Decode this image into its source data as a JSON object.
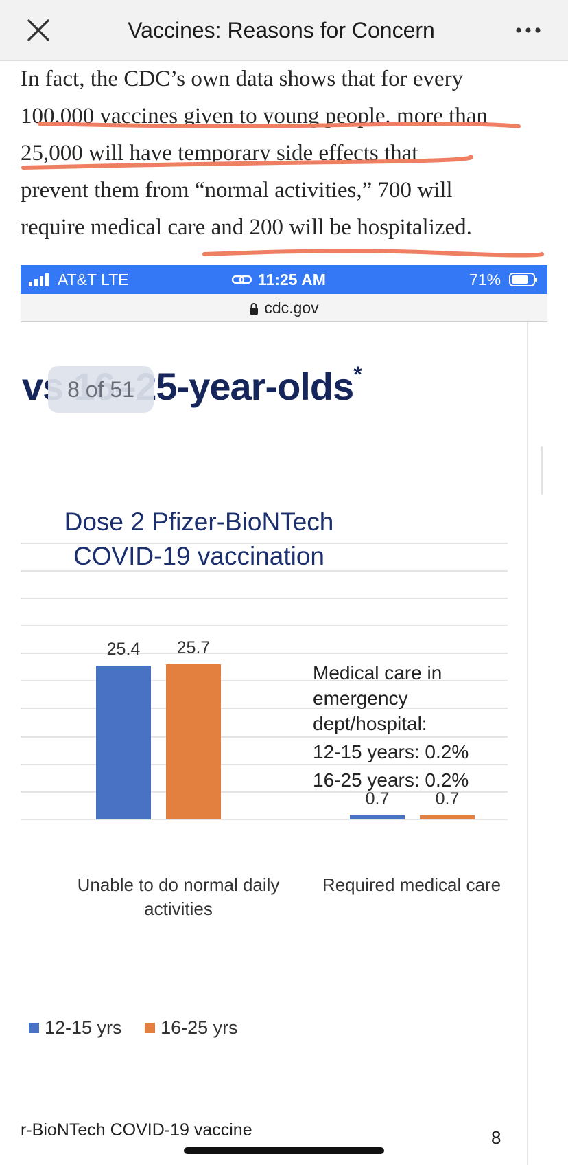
{
  "app": {
    "title": "Vaccines: Reasons for Concern"
  },
  "article": {
    "lines": [
      "In fact, the CDC’s own data shows that for every",
      "100,000 vaccines given to young people, more than",
      "25,000 will have temporary side effects that",
      "prevent them from “normal activities,” 700 will",
      "require medical care and 200 will be hospitalized."
    ],
    "highlight_color": "#ee7f63"
  },
  "screenshot": {
    "status": {
      "carrier": "AT&T  LTE",
      "time": "11:25 AM",
      "battery": "71%"
    },
    "url": "cdc.gov",
    "slide": {
      "heading": "vs 16–25-year-olds",
      "heading_mark": "*",
      "page_counter": "8 of 51",
      "footer_text": "r-BioNTech COVID-19 vaccine",
      "footer_page": "8",
      "note": {
        "lines": [
          "Medical care in",
          "emergency",
          "dept/hospital:",
          "12-15 years: 0.2%",
          "16-25 years: 0.2%"
        ]
      }
    }
  },
  "chart_data": {
    "type": "bar",
    "title_lines": [
      "Dose 2 Pfizer-BioNTech",
      "COVID-19 vaccination"
    ],
    "categories": [
      "Unable to do normal daily activities",
      "Required medical care"
    ],
    "category_label_lines": [
      [
        "Unable to do normal daily",
        "activities"
      ],
      [
        "Required medical care"
      ]
    ],
    "series": [
      {
        "name": "12-15 yrs",
        "values": [
          25.4,
          0.7
        ],
        "color": "#4a72c4"
      },
      {
        "name": "16-25 yrs",
        "values": [
          25.7,
          0.7
        ],
        "color": "#e3803f"
      }
    ],
    "ylim": [
      0,
      50
    ],
    "grid": true,
    "legend": "bottom-left"
  },
  "colors": {
    "statusbar": "#3478f6",
    "heading": "#16255a",
    "slide_stripes": [
      "#a82a2a",
      "#efb040",
      "#2a2c6a",
      "#4a57a6"
    ]
  }
}
